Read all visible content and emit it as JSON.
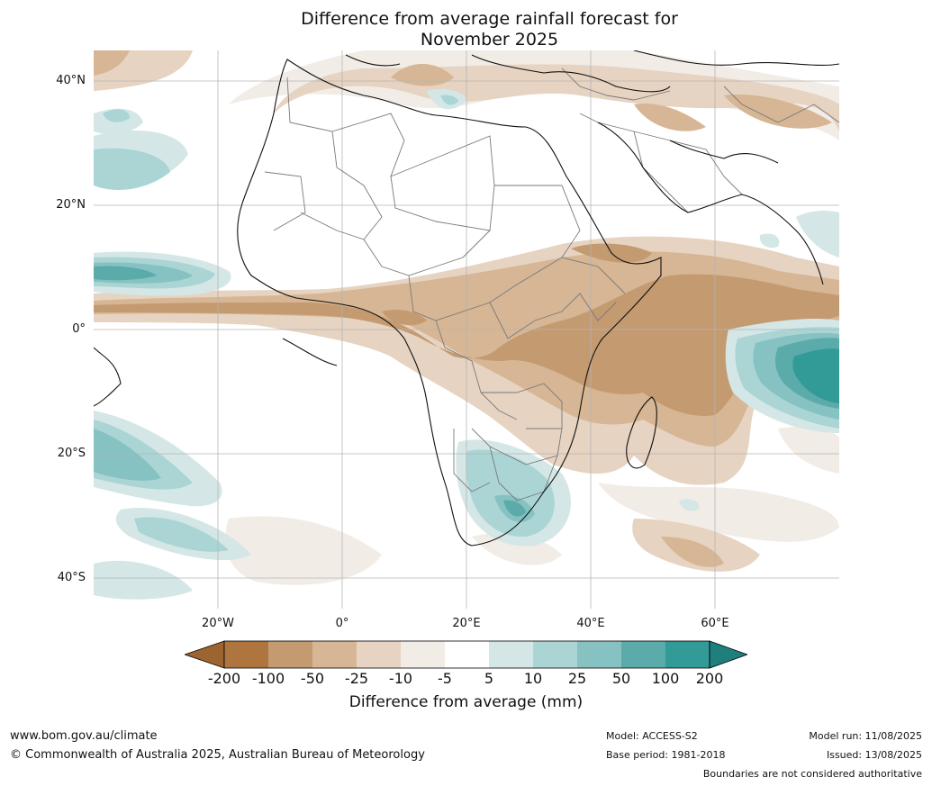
{
  "title_line1": "Difference from average rainfall forecast for",
  "title_line2": "November 2025",
  "lat_labels": [
    "40°N",
    "20°N",
    "0°",
    "20°S",
    "40°S"
  ],
  "lon_labels": [
    "20°W",
    "0°",
    "20°E",
    "40°E",
    "60°E"
  ],
  "colorbar": {
    "ticks": [
      "-200",
      "-100",
      "-50",
      "-25",
      "-10",
      "-5",
      "5",
      "10",
      "25",
      "50",
      "100",
      "200"
    ],
    "colors": [
      "#9b6430",
      "#ae763e",
      "#c49a70",
      "#d6b694",
      "#e6d3c1",
      "#f2ece6",
      "#ffffff",
      "#d4e7e6",
      "#abd5d5",
      "#85c2c1",
      "#5aabaa",
      "#329a97",
      "#1f7f7c"
    ],
    "label": "Difference from average (mm)"
  },
  "footer": {
    "website": "www.bom.gov.au/climate",
    "copyright": "© Commonwealth of Australia 2025, Australian Bureau of Meteorology",
    "model": "Model: ACCESS-S2",
    "base_period": "Base period: 1981-2018",
    "model_run": "Model run: 11/08/2025",
    "issued": "Issued: 13/08/2025",
    "boundaries_note": "Boundaries are not considered authoritative"
  }
}
